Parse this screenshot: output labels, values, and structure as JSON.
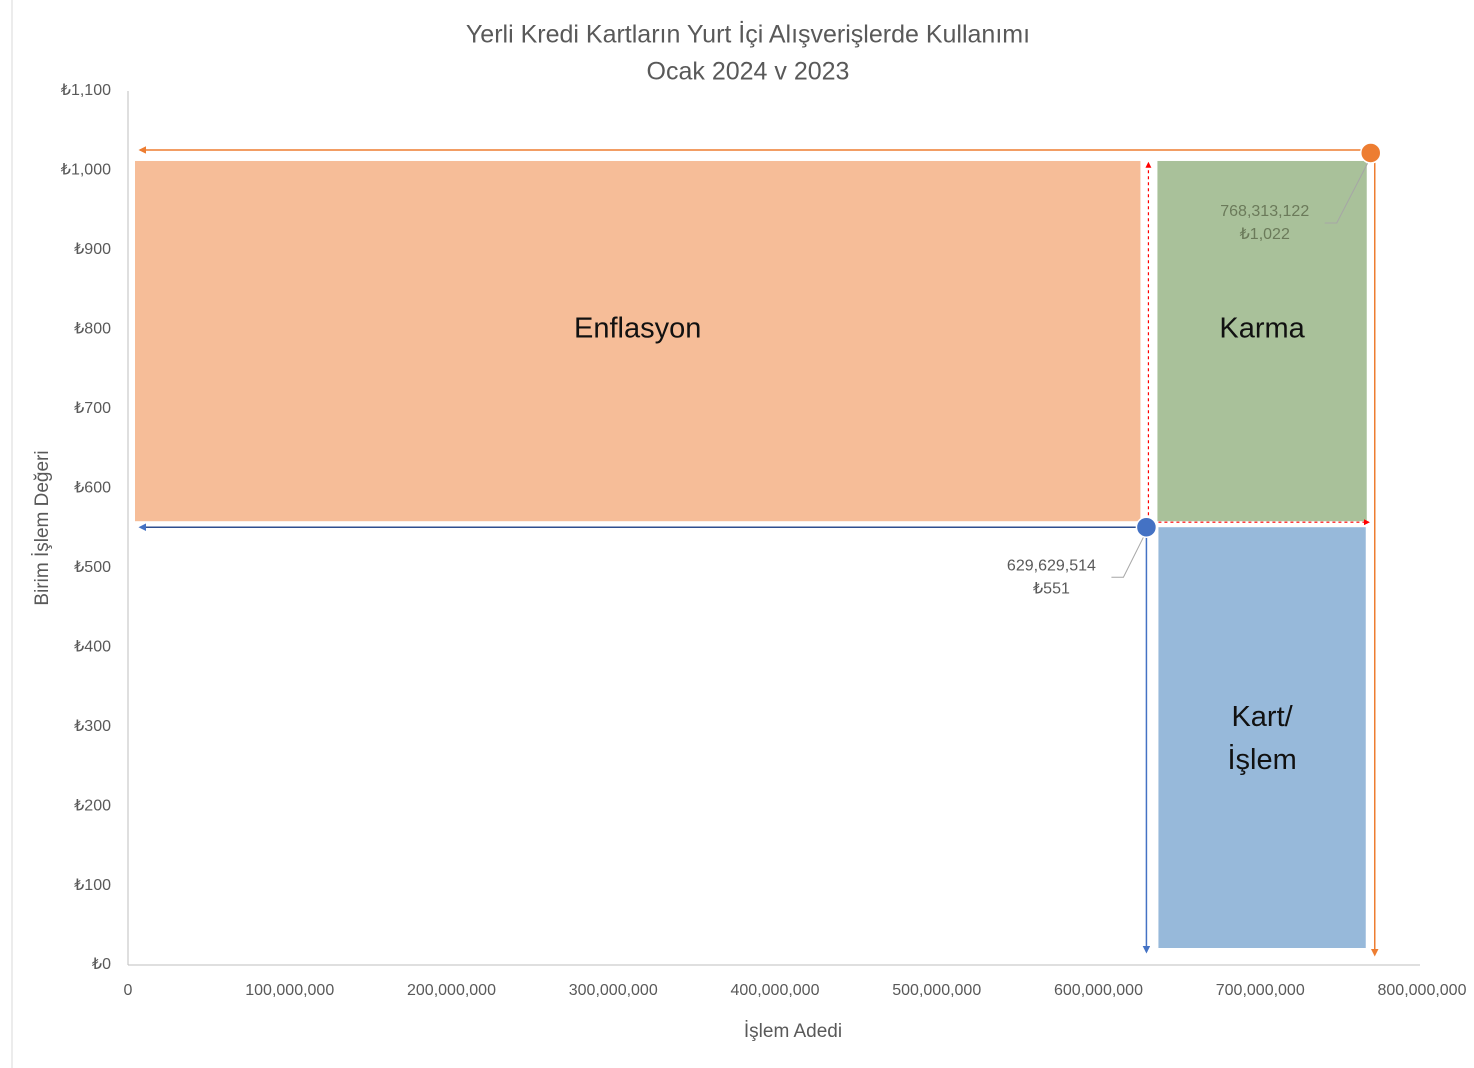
{
  "chart_data": {
    "type": "scatter",
    "title": [
      "Yerli Kredi Kartların Yurt İçi Alışverişlerde Kullanımı",
      "Ocak 2024 v 2023"
    ],
    "x_label": "İşlem Adedi",
    "y_label": "Birim İşlem Değeri",
    "series": [
      {
        "color": "#4472c4",
        "x": [
          629629514
        ],
        "values": [
          551
        ],
        "x_labels": [
          "629,629,514"
        ],
        "value_labels": [
          "₺551"
        ]
      },
      {
        "color": "#ed7d31",
        "x": [
          768313122
        ],
        "values": [
          1022
        ],
        "x_labels": [
          "768,313,122"
        ],
        "value_labels": [
          "₺1,022"
        ]
      }
    ],
    "regions": [
      {
        "lines": [
          "Enflasyon"
        ],
        "color": "#f6bd98"
      },
      {
        "lines": [
          "Karma"
        ],
        "color": "#a9c19a"
      },
      {
        "lines": [
          "Kart/",
          "İşlem"
        ],
        "color": "#97b9da"
      }
    ],
    "xlim": [
      0,
      800000000
    ],
    "xticks": [
      0,
      {
        "value": 100000000,
        "label": "100,000,000"
      },
      {
        "value": 200000000,
        "label": "200,000,000"
      },
      {
        "value": 300000000,
        "label": "300,000,000"
      },
      {
        "value": 400000000,
        "label": "400,000,000"
      },
      {
        "value": 500000000,
        "label": "500,000,000"
      },
      {
        "value": 600000000,
        "label": "600,000,000"
      },
      {
        "value": 700000000,
        "label": "700,000,000"
      },
      {
        "value": 800000000,
        "label": "800,000,000"
      }
    ],
    "ylim": [
      0,
      1100
    ],
    "yticks": [
      {
        "value": 0,
        "label": "₺0"
      },
      {
        "value": 100,
        "label": "₺100"
      },
      {
        "value": 200,
        "label": "₺200"
      },
      {
        "value": 300,
        "label": "₺300"
      },
      {
        "value": 400,
        "label": "₺400"
      },
      {
        "value": 500,
        "label": "₺500"
      },
      {
        "value": 600,
        "label": "₺600"
      },
      {
        "value": 700,
        "label": "₺700"
      },
      {
        "value": 800,
        "label": "₺800"
      },
      {
        "value": 900,
        "label": "₺900"
      },
      {
        "value": 1000,
        "label": "₺1,000"
      },
      {
        "value": 1100,
        "label": "₺1,100"
      }
    ],
    "grid": false
  }
}
